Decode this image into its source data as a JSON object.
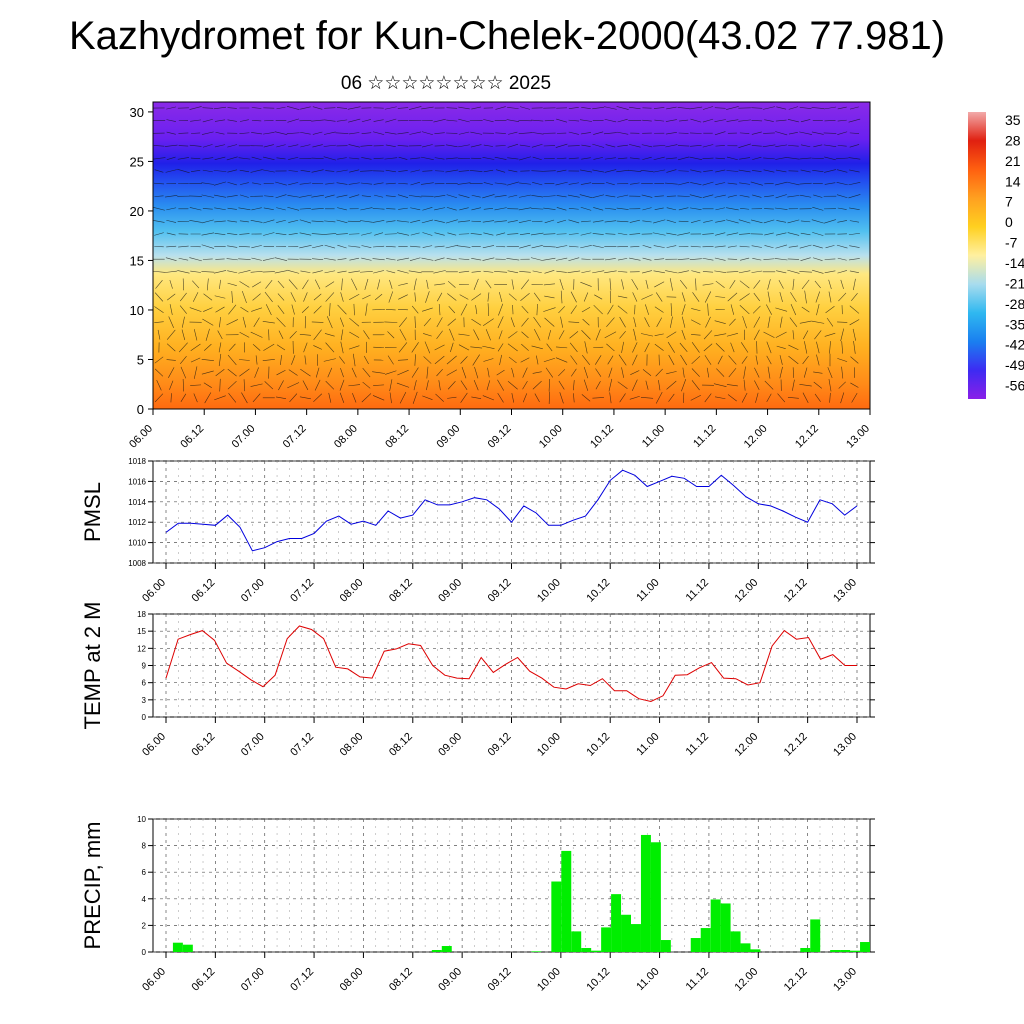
{
  "title": "Kazhydromet for Kun-Chelek-2000(43.02 77.981)",
  "subtitle": "06 ☆☆☆☆☆☆☆☆ 2025",
  "colors": {
    "pmsl_line": "#0000dd",
    "temp_line": "#dd0000",
    "precip_bar": "#00ee00",
    "colorbar_stops": [
      "#8a1fe8",
      "#3d2bf2",
      "#1a7ff0",
      "#2fb8f0",
      "#a8dcee",
      "#fff0a0",
      "#ffd020",
      "#ffa020",
      "#ff6010",
      "#e02010",
      "#f2aaaa"
    ]
  },
  "chart_data": [
    {
      "type": "heatmap",
      "name": "upper-air-section",
      "x_ticks": [
        "06.00",
        "06.12",
        "07.00",
        "07.12",
        "08.00",
        "08.12",
        "09.00",
        "09.12",
        "10.00",
        "10.12",
        "11.00",
        "11.12",
        "12.00",
        "12.12",
        "13.00"
      ],
      "y_ticks": [
        0,
        5,
        10,
        15,
        20,
        25,
        30
      ],
      "ylim": [
        0,
        31
      ],
      "colorbar_labels": [
        "35",
        "28",
        "21",
        "14",
        "7",
        "0",
        "-7",
        "-14",
        "-21",
        "-28",
        "-35",
        "-42",
        "-49",
        "-56"
      ],
      "arrows": "wind vectors"
    },
    {
      "type": "line",
      "name": "pmsl",
      "ylabel": "PMSL",
      "ylim": [
        1008,
        1018
      ],
      "y_ticks": [
        1008,
        1010,
        1012,
        1014,
        1016,
        1018
      ],
      "x_ticks": [
        "06.00",
        "06.12",
        "07.00",
        "07.12",
        "08.00",
        "08.12",
        "09.00",
        "09.12",
        "10.00",
        "10.12",
        "11.00",
        "11.12",
        "12.00",
        "12.12",
        "13.00"
      ],
      "values": [
        1011.0,
        1011.9,
        1011.9,
        1011.8,
        1011.7,
        1012.7,
        1011.5,
        1009.2,
        1009.5,
        1010.1,
        1010.4,
        1010.4,
        1010.9,
        1012.1,
        1012.6,
        1011.8,
        1012.1,
        1011.7,
        1013.1,
        1012.4,
        1012.7,
        1014.2,
        1013.7,
        1013.7,
        1014.0,
        1014.4,
        1014.2,
        1013.3,
        1012.0,
        1013.6,
        1012.9,
        1011.7,
        1011.7,
        1012.2,
        1012.6,
        1014.2,
        1016.1,
        1017.1,
        1016.6,
        1015.5,
        1016.0,
        1016.5,
        1016.3,
        1015.5,
        1015.5,
        1016.6,
        1015.6,
        1014.5,
        1013.8,
        1013.6,
        1013.1,
        1012.5,
        1012.0,
        1014.2,
        1013.8,
        1012.7,
        1013.6
      ]
    },
    {
      "type": "line",
      "name": "temp-2m",
      "ylabel": "TEMP at 2 M",
      "ylim": [
        0,
        18
      ],
      "y_ticks": [
        0,
        3,
        6,
        9,
        12,
        15,
        18
      ],
      "x_ticks": [
        "06.00",
        "06.12",
        "07.00",
        "07.12",
        "08.00",
        "08.12",
        "09.00",
        "09.12",
        "10.00",
        "10.12",
        "11.00",
        "11.12",
        "12.00",
        "12.12",
        "13.00"
      ],
      "values": [
        6.8,
        13.6,
        14.4,
        15.1,
        13.4,
        9.4,
        8.0,
        6.5,
        5.3,
        7.3,
        13.7,
        15.9,
        15.3,
        13.7,
        8.7,
        8.4,
        7.0,
        6.8,
        11.5,
        11.9,
        12.8,
        12.5,
        9.0,
        7.3,
        6.8,
        6.7,
        10.4,
        7.8,
        9.2,
        10.4,
        8.0,
        6.8,
        5.2,
        4.9,
        5.8,
        5.5,
        6.7,
        4.6,
        4.6,
        3.2,
        2.7,
        3.7,
        7.3,
        7.4,
        8.6,
        9.5,
        6.8,
        6.7,
        5.6,
        6.0,
        12.4,
        15.1,
        13.6,
        13.9,
        10.1,
        10.9,
        9.0,
        9.0
      ]
    },
    {
      "type": "bar",
      "name": "precip",
      "ylabel": "PRECIP, mm",
      "ylim": [
        0,
        10
      ],
      "y_ticks": [
        0,
        2,
        4,
        6,
        8,
        10
      ],
      "x_ticks": [
        "06.00",
        "06.12",
        "07.00",
        "07.12",
        "08.00",
        "08.12",
        "09.00",
        "09.12",
        "10.00",
        "10.12",
        "11.00",
        "11.12",
        "12.00",
        "12.12",
        "13.00"
      ],
      "values": [
        0,
        0,
        0.7,
        0.55,
        0,
        0,
        0,
        0,
        0,
        0,
        0,
        0,
        0,
        0,
        0,
        0,
        0,
        0,
        0,
        0,
        0,
        0,
        0,
        0,
        0,
        0,
        0,
        0,
        0.15,
        0.45,
        0,
        0,
        0,
        0,
        0,
        0,
        0,
        0,
        0.05,
        0,
        5.3,
        7.6,
        1.55,
        0.3,
        0.1,
        1.85,
        4.35,
        2.8,
        2.1,
        8.8,
        8.25,
        0.9,
        0,
        0,
        1.05,
        1.8,
        3.95,
        3.65,
        1.55,
        0.65,
        0.2,
        0,
        0,
        0,
        0,
        0.3,
        2.45,
        0,
        0.15,
        0.15,
        0.1,
        0.75
      ]
    }
  ]
}
